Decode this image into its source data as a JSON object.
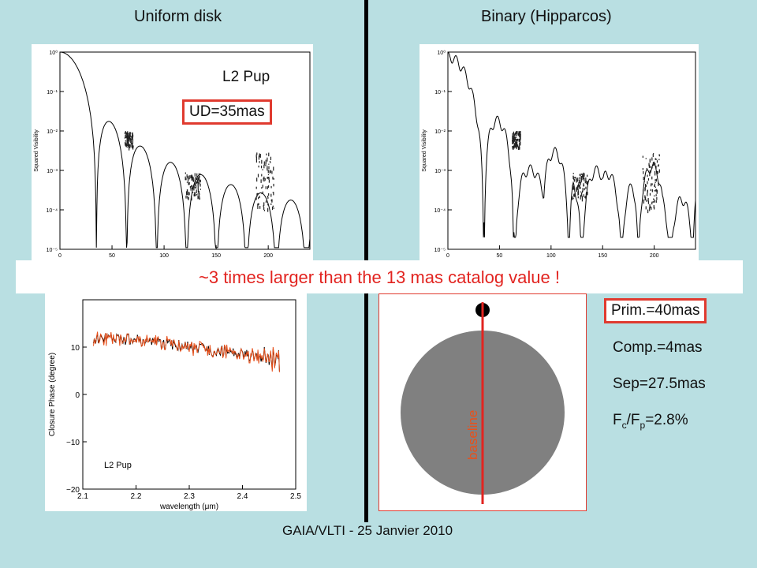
{
  "headers": {
    "left": "Uniform disk",
    "right": "Binary (Hipparcos)"
  },
  "annotations": {
    "star": "L2 Pup",
    "ud": "UD=35mas",
    "banner": "~3 times larger than the 13 mas catalog value !",
    "prim": "Prim.=40mas",
    "comp": "Comp.=4mas",
    "sep": "Sep=27.5mas",
    "flux_ratio_main": "F",
    "flux_ratio_sub_c": "c",
    "flux_ratio_mid": "/F",
    "flux_ratio_sub_p": "p",
    "flux_ratio_val": "=2.8%",
    "baseline": "baseline",
    "footer": "GAIA/VLTI - 25 Janvier 2010"
  },
  "colors": {
    "background": "#b9dfe2",
    "accent_red": "#e22420",
    "box_border": "#e03a2f",
    "disk": "#808080",
    "orange": "#e8501b"
  },
  "chart_data": [
    {
      "type": "line",
      "name": "uniform-disk-visibility",
      "ylabel": "Squared Visibility",
      "yscale": "log",
      "ylim": [
        1e-05,
        1
      ],
      "xlim": [
        0,
        240
      ],
      "xticks": [
        0,
        50,
        100,
        150,
        200
      ],
      "yticks": [
        1,
        0.1,
        0.01,
        0.001,
        0.0001,
        1e-05
      ],
      "yticklabels": [
        "10⁰",
        "10⁻¹",
        "10⁻²",
        "10⁻³",
        "10⁻⁴",
        "10⁻⁵"
      ],
      "model_zeros": [
        35,
        65,
        95,
        125,
        155,
        185,
        215
      ],
      "data_clusters": [
        {
          "x": [
            62,
            70
          ],
          "y": [
            0.004,
            0.01
          ]
        },
        {
          "x": [
            120,
            135
          ],
          "y": [
            0.0002,
            0.0009
          ]
        },
        {
          "x": [
            188,
            205
          ],
          "y": [
            0.0001,
            0.003
          ]
        }
      ]
    },
    {
      "type": "line",
      "name": "binary-visibility",
      "ylabel": "Squared Visibility",
      "yscale": "log",
      "ylim": [
        1e-05,
        1
      ],
      "xlim": [
        0,
        240
      ],
      "xticks": [
        0,
        50,
        100,
        150,
        200
      ],
      "yticks": [
        1,
        0.1,
        0.01,
        0.001,
        0.0001,
        1e-05
      ],
      "yticklabels": [
        "10⁰",
        "10⁻¹",
        "10⁻²",
        "10⁻³",
        "10⁻⁴",
        "10⁻⁵"
      ],
      "data_clusters": [
        {
          "x": [
            62,
            70
          ],
          "y": [
            0.004,
            0.01
          ]
        },
        {
          "x": [
            120,
            135
          ],
          "y": [
            0.0002,
            0.0009
          ]
        },
        {
          "x": [
            188,
            205
          ],
          "y": [
            0.0001,
            0.003
          ]
        }
      ]
    },
    {
      "type": "line",
      "name": "closure-phase",
      "xlabel": "wavelength (μm)",
      "ylabel": "Closure Phase (degree)",
      "legend": "L2 Pup",
      "xlim": [
        2.1,
        2.5
      ],
      "ylim": [
        -20,
        20
      ],
      "xticks": [
        2.1,
        2.2,
        2.3,
        2.4,
        2.5
      ],
      "yticks": [
        10,
        0,
        -10,
        -20
      ],
      "series": [
        {
          "x": [
            2.12,
            2.2,
            2.3,
            2.4,
            2.47
          ],
          "y": [
            12,
            11.5,
            10,
            8.5,
            7
          ]
        }
      ]
    }
  ]
}
